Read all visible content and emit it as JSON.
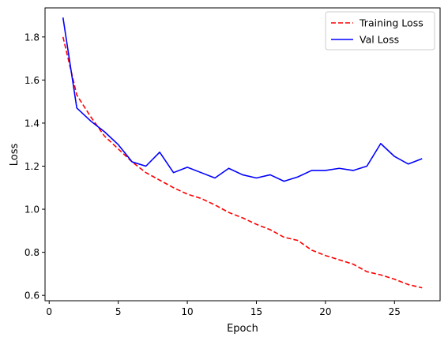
{
  "chart_data": {
    "type": "line",
    "xlabel": "Epoch",
    "ylabel": "Loss",
    "xlim": [
      -0.3,
      28.3
    ],
    "ylim": [
      0.575,
      1.935
    ],
    "x_ticks": [
      0,
      5,
      10,
      15,
      20,
      25
    ],
    "y_ticks": [
      0.6,
      0.8,
      1.0,
      1.2,
      1.4,
      1.6,
      1.8
    ],
    "y_tick_labels": [
      "0.6",
      "0.8",
      "1.0",
      "1.2",
      "1.4",
      "1.6",
      "1.8"
    ],
    "grid": false,
    "legend_position": "top-right",
    "x": [
      1,
      2,
      3,
      4,
      5,
      6,
      7,
      8,
      9,
      10,
      11,
      12,
      13,
      14,
      15,
      16,
      17,
      18,
      19,
      20,
      21,
      22,
      23,
      24,
      25,
      26,
      27
    ],
    "series": [
      {
        "name": "Training Loss",
        "color": "#ff0000",
        "style": "dashed",
        "values": [
          1.8,
          1.53,
          1.43,
          1.34,
          1.28,
          1.22,
          1.17,
          1.135,
          1.1,
          1.07,
          1.05,
          1.02,
          0.985,
          0.96,
          0.93,
          0.905,
          0.87,
          0.855,
          0.81,
          0.785,
          0.765,
          0.745,
          0.71,
          0.695,
          0.675,
          0.65,
          0.635
        ]
      },
      {
        "name": "Val Loss",
        "color": "#0000ff",
        "style": "solid",
        "values": [
          1.89,
          1.47,
          1.41,
          1.36,
          1.3,
          1.22,
          1.2,
          1.265,
          1.17,
          1.195,
          1.17,
          1.145,
          1.19,
          1.16,
          1.145,
          1.16,
          1.13,
          1.15,
          1.18,
          1.18,
          1.19,
          1.18,
          1.2,
          1.305,
          1.245,
          1.21,
          1.235
        ]
      }
    ]
  }
}
